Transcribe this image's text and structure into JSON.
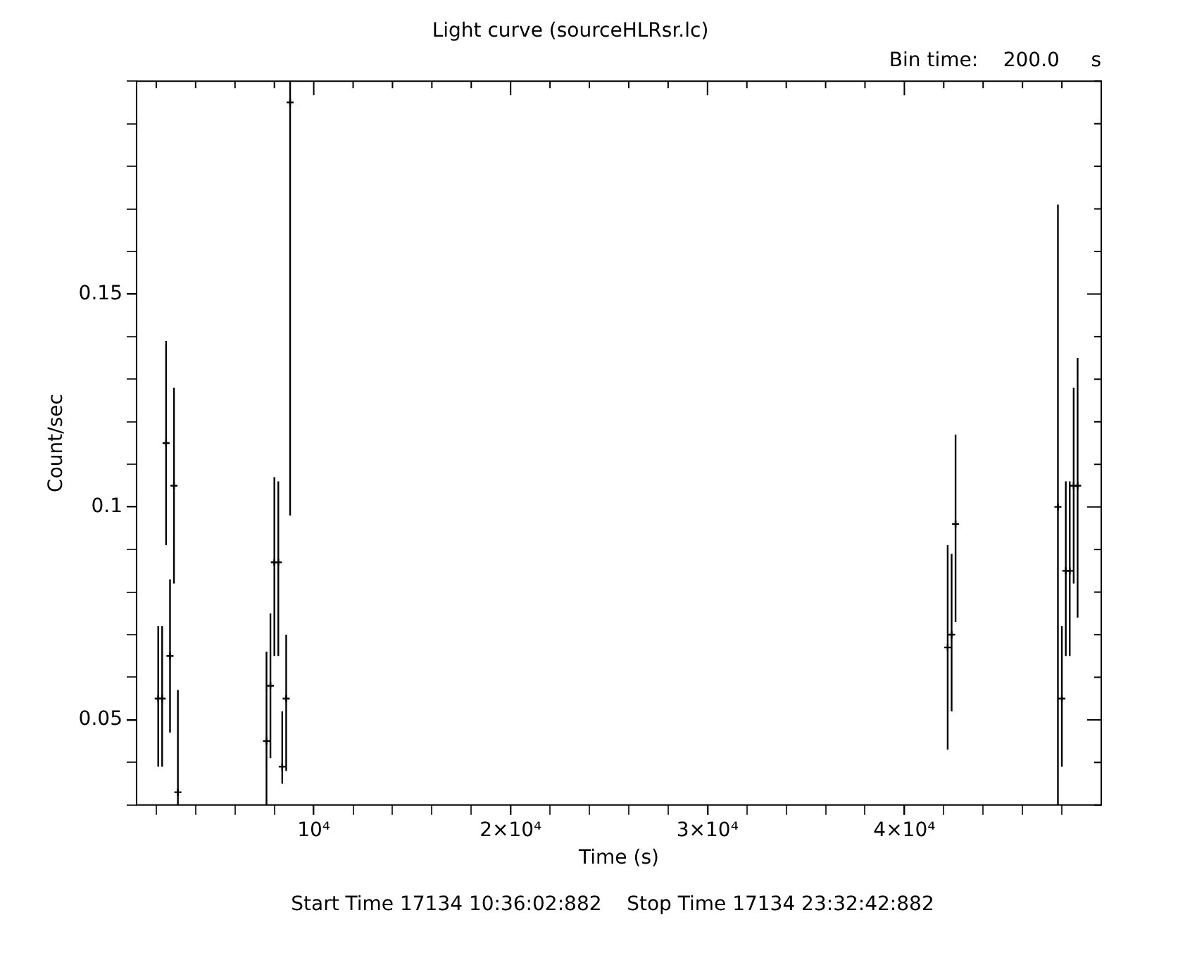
{
  "chart_data": {
    "type": "scatter",
    "title": "Light curve (sourceHLRsr.lc)",
    "subtitle": "Bin time:    200.0     s",
    "xlabel": "Time (s)",
    "ylabel": "Count/sec",
    "annotations": [
      "Start Time 17134 10:36:02:882    Stop Time 17134 23:32:42:882"
    ],
    "x": [
      2100,
      2300,
      2500,
      2700,
      2900,
      3100,
      7600,
      7800,
      8000,
      8200,
      8400,
      8600,
      8800,
      42200,
      42400,
      42600,
      47800,
      48000,
      48200,
      48400,
      48600,
      48800
    ],
    "series": [
      {
        "color": "#000000",
        "values": [
          0.055,
          0.055,
          0.115,
          0.065,
          0.105,
          0.033,
          0.045,
          0.058,
          0.087,
          0.087,
          0.039,
          0.055,
          0.195,
          0.067,
          0.07,
          0.096,
          0.1,
          0.055,
          0.085,
          0.085,
          0.105,
          0.105
        ],
        "errors": [
          [
            0.039,
            0.072
          ],
          [
            0.039,
            0.072
          ],
          [
            0.091,
            0.139
          ],
          [
            0.047,
            0.083
          ],
          [
            0.082,
            0.128
          ],
          [
            0.03,
            0.057
          ],
          [
            0.03,
            0.066
          ],
          [
            0.041,
            0.075
          ],
          [
            0.065,
            0.107
          ],
          [
            0.065,
            0.106
          ],
          [
            0.035,
            0.052
          ],
          [
            0.038,
            0.07
          ],
          [
            0.098,
            0.2
          ],
          [
            0.043,
            0.091
          ],
          [
            0.052,
            0.089
          ],
          [
            0.073,
            0.117
          ],
          [
            0.03,
            0.171
          ],
          [
            0.039,
            0.072
          ],
          [
            0.065,
            0.106
          ],
          [
            0.065,
            0.106
          ],
          [
            0.082,
            0.128
          ],
          [
            0.074,
            0.135
          ]
        ],
        "marker": "cross"
      }
    ],
    "xlim": [
      1000,
      50000
    ],
    "xticks": [
      {
        "value": 2000,
        "label": null
      },
      {
        "value": 4000,
        "label": null
      },
      {
        "value": 6000,
        "label": null
      },
      {
        "value": 8000,
        "label": null
      },
      {
        "value": 10000,
        "label": "10⁴"
      },
      {
        "value": 12000,
        "label": null
      },
      {
        "value": 14000,
        "label": null
      },
      {
        "value": 16000,
        "label": null
      },
      {
        "value": 18000,
        "label": null
      },
      {
        "value": 20000,
        "label": "2×10⁴"
      },
      {
        "value": 22000,
        "label": null
      },
      {
        "value": 24000,
        "label": null
      },
      {
        "value": 26000,
        "label": null
      },
      {
        "value": 28000,
        "label": null
      },
      {
        "value": 30000,
        "label": "3×10⁴"
      },
      {
        "value": 32000,
        "label": null
      },
      {
        "value": 34000,
        "label": null
      },
      {
        "value": 36000,
        "label": null
      },
      {
        "value": 38000,
        "label": null
      },
      {
        "value": 40000,
        "label": "4×10⁴"
      },
      {
        "value": 42000,
        "label": null
      },
      {
        "value": 44000,
        "label": null
      },
      {
        "value": 46000,
        "label": null
      },
      {
        "value": 48000,
        "label": null
      }
    ],
    "ylim": [
      0.03,
      0.2
    ],
    "yticks": [
      {
        "value": 0.03,
        "label": null
      },
      {
        "value": 0.04,
        "label": null
      },
      0.05,
      {
        "value": 0.06,
        "label": null
      },
      {
        "value": 0.07,
        "label": null
      },
      {
        "value": 0.08,
        "label": null
      },
      {
        "value": 0.09,
        "label": null
      },
      0.1,
      {
        "value": 0.11,
        "label": null
      },
      {
        "value": 0.12,
        "label": null
      },
      {
        "value": 0.13,
        "label": null
      },
      {
        "value": 0.14,
        "label": null
      },
      0.15,
      {
        "value": 0.16,
        "label": null
      },
      {
        "value": 0.17,
        "label": null
      },
      {
        "value": 0.18,
        "label": null
      },
      {
        "value": 0.19,
        "label": null
      },
      {
        "value": 0.2,
        "label": null
      }
    ],
    "grid": false,
    "legend": false
  }
}
